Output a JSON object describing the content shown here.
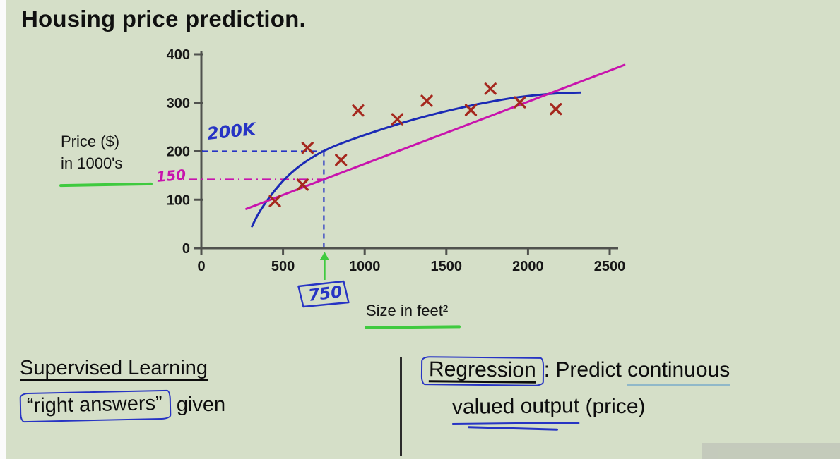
{
  "page": {
    "title": "Housing price prediction.",
    "background": "#d5dfc8"
  },
  "chart_data": {
    "type": "scatter",
    "title": "Housing price prediction.",
    "xlabel": "Size in feet²",
    "ylabel": "Price ($) in 1000's",
    "ylabel_line1": "Price ($)",
    "ylabel_line2": "in 1000's",
    "xlim": [
      0,
      2500
    ],
    "ylim": [
      0,
      400
    ],
    "x_ticks": [
      0,
      500,
      1000,
      1500,
      2000,
      2500
    ],
    "y_ticks": [
      0,
      100,
      200,
      300,
      400
    ],
    "grid": false,
    "legend": false,
    "points": [
      [
        450,
        97
      ],
      [
        620,
        131
      ],
      [
        650,
        207
      ],
      [
        855,
        182
      ],
      [
        960,
        284
      ],
      [
        1200,
        266
      ],
      [
        1380,
        304
      ],
      [
        1650,
        285
      ],
      [
        1770,
        329
      ],
      [
        1950,
        301
      ],
      [
        2170,
        287
      ]
    ],
    "series": [
      {
        "name": "curved-model-fit",
        "type": "curve",
        "color": "#1b2ab5",
        "points": [
          [
            310,
            45
          ],
          [
            340,
            66
          ],
          [
            380,
            88
          ],
          [
            450,
            120
          ],
          [
            530,
            150
          ],
          [
            620,
            175
          ],
          [
            750,
            202
          ],
          [
            900,
            222
          ],
          [
            1100,
            245
          ],
          [
            1300,
            266
          ],
          [
            1500,
            283
          ],
          [
            1700,
            298
          ],
          [
            1900,
            310
          ],
          [
            2050,
            316
          ],
          [
            2200,
            320
          ],
          [
            2320,
            321
          ]
        ]
      },
      {
        "name": "linear-model-fit",
        "type": "line",
        "color": "#c813ad",
        "points": [
          [
            275,
            81
          ],
          [
            2590,
            378
          ]
        ]
      }
    ],
    "annotations": {
      "dashed_price": {
        "label": "200K",
        "x": 750,
        "y": 200,
        "color": "#2734c4"
      },
      "dashdot_price": {
        "label": "150",
        "x": 750,
        "y": 150,
        "color": "#c813ad"
      },
      "arrow_size": {
        "label": "750",
        "x": 750,
        "arrow_color": "#3fca3f",
        "label_color": "#2734c4"
      }
    },
    "colors": {
      "marker": "#a5281e",
      "axis": "#50524e",
      "tick_text": "#161616",
      "ink_blue": "#2734c4",
      "ink_green": "#3fca3f",
      "ink_magenta": "#c813ad"
    }
  },
  "notes": {
    "left": {
      "heading": "Supervised Learning",
      "boxed_phrase": "“right answers”",
      "suffix": " given"
    },
    "right": {
      "term": "Regression",
      "after_term": ": Predict ",
      "underlined_word": "continuous",
      "line2_word": "valued output",
      "line2_suffix": " (price)"
    }
  }
}
